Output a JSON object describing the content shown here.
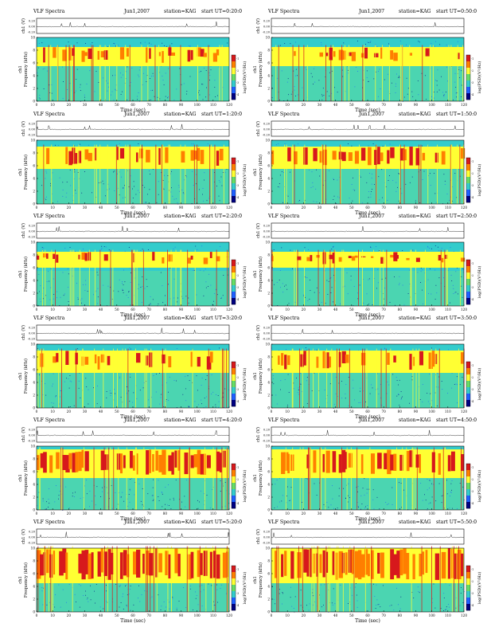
{
  "figure": {
    "header_prefix": "VLF Spectra",
    "date": "Jun1,2007",
    "station": "station=KAG",
    "start_prefix": "start  UT",
    "time_label": "Time (sec)",
    "freq_label": "Frequency (kHz)",
    "ch_label": "ch1",
    "ch_amp_label": "ch1 (V)",
    "colorbar_label": "log(PSD)(V²/Hz)",
    "colorbar_ticks": [
      "-1",
      "-2",
      "-3",
      "-4"
    ],
    "colorbar_colors": [
      "#d7191c",
      "#ff7f00",
      "#ffff33",
      "#66dd66",
      "#33cccc",
      "#1f5fff",
      "#000080"
    ],
    "amp_ticks": [
      "0.20",
      "0.00",
      "-0.20"
    ]
  },
  "chart_data": [
    {
      "type": "heatmap",
      "panel": "0:20:0",
      "start_ut": "=0:20:0",
      "xlim": [
        0,
        120
      ],
      "ylim": [
        0,
        10
      ],
      "x_ticks": [
        0,
        10,
        20,
        30,
        40,
        50,
        60,
        70,
        80,
        90,
        100,
        110,
        120
      ],
      "y_ticks": [
        0,
        2,
        4,
        6,
        8,
        10
      ],
      "xlabel": "Time (sec)",
      "ylabel": "Frequency (kHz)",
      "colorbar_label": "log(PSD)(V²/Hz)",
      "band_kHz": [
        5.5,
        8.5
      ],
      "intensity": "moderate"
    },
    {
      "type": "heatmap",
      "panel": "0:50:0",
      "start_ut": "=0:50:0",
      "xlim": [
        0,
        120
      ],
      "ylim": [
        0,
        10
      ],
      "x_ticks": [
        0,
        10,
        20,
        30,
        40,
        50,
        60,
        70,
        80,
        90,
        100,
        110,
        120
      ],
      "y_ticks": [
        0,
        2,
        4,
        6,
        8,
        10
      ],
      "xlabel": "Time (sec)",
      "ylabel": "Frequency (kHz)",
      "colorbar_label": "log(PSD)(V²/Hz)",
      "band_kHz": [
        5.5,
        8.5
      ],
      "intensity": "moderate"
    },
    {
      "type": "heatmap",
      "panel": "1:20:0",
      "start_ut": "=1:20:0",
      "xlim": [
        0,
        120
      ],
      "ylim": [
        0,
        10
      ],
      "x_ticks": [
        0,
        10,
        20,
        30,
        40,
        50,
        60,
        70,
        80,
        90,
        100,
        110,
        120
      ],
      "y_ticks": [
        0,
        2,
        4,
        6,
        8,
        10
      ],
      "xlabel": "Time (sec)",
      "ylabel": "Frequency (kHz)",
      "colorbar_label": "log(PSD)(V²/Hz)",
      "band_kHz": [
        5.5,
        9
      ],
      "intensity": "moderate"
    },
    {
      "type": "heatmap",
      "panel": "1:50:0",
      "start_ut": "=1:50:0",
      "xlim": [
        0,
        120
      ],
      "ylim": [
        0,
        10
      ],
      "x_ticks": [
        0,
        10,
        20,
        30,
        40,
        50,
        60,
        70,
        80,
        90,
        100,
        110,
        120
      ],
      "y_ticks": [
        0,
        2,
        4,
        6,
        8,
        10
      ],
      "xlabel": "Time (sec)",
      "ylabel": "Frequency (kHz)",
      "colorbar_label": "log(PSD)(V²/Hz)",
      "band_kHz": [
        5.5,
        9
      ],
      "intensity": "moderate"
    },
    {
      "type": "heatmap",
      "panel": "2:20:0",
      "start_ut": "=2:20:0",
      "xlim": [
        0,
        120
      ],
      "ylim": [
        0,
        10
      ],
      "x_ticks": [
        0,
        10,
        20,
        30,
        40,
        50,
        60,
        70,
        80,
        90,
        100,
        110,
        120
      ],
      "y_ticks": [
        0,
        2,
        4,
        6,
        8,
        10
      ],
      "xlabel": "Time (sec)",
      "ylabel": "Frequency (kHz)",
      "colorbar_label": "log(PSD)(V²/Hz)",
      "band_kHz": [
        6,
        8.5
      ],
      "intensity": "moderate"
    },
    {
      "type": "heatmap",
      "panel": "2:50:0",
      "start_ut": "=2:50:0",
      "xlim": [
        0,
        120
      ],
      "ylim": [
        0,
        10
      ],
      "x_ticks": [
        0,
        10,
        20,
        30,
        40,
        50,
        60,
        70,
        80,
        90,
        100,
        110,
        120
      ],
      "y_ticks": [
        0,
        2,
        4,
        6,
        8,
        10
      ],
      "xlabel": "Time (sec)",
      "ylabel": "Frequency (kHz)",
      "colorbar_label": "log(PSD)(V²/Hz)",
      "band_kHz": [
        6,
        8.5
      ],
      "intensity": "moderate"
    },
    {
      "type": "heatmap",
      "panel": "3:20:0",
      "start_ut": "=3:20:0",
      "xlim": [
        0,
        120
      ],
      "ylim": [
        0,
        10
      ],
      "x_ticks": [
        0,
        10,
        20,
        30,
        40,
        50,
        60,
        70,
        80,
        90,
        100,
        110,
        120
      ],
      "y_ticks": [
        0,
        2,
        4,
        6,
        8,
        10
      ],
      "xlabel": "Time (sec)",
      "ylabel": "Frequency (kHz)",
      "colorbar_label": "log(PSD)(V²/Hz)",
      "band_kHz": [
        5.5,
        9
      ],
      "intensity": "moderate"
    },
    {
      "type": "heatmap",
      "panel": "3:50:0",
      "start_ut": "=3:50:0",
      "xlim": [
        0,
        120
      ],
      "ylim": [
        0,
        10
      ],
      "x_ticks": [
        0,
        10,
        20,
        30,
        40,
        50,
        60,
        70,
        80,
        90,
        100,
        110,
        120
      ],
      "y_ticks": [
        0,
        2,
        4,
        6,
        8,
        10
      ],
      "xlabel": "Time (sec)",
      "ylabel": "Frequency (kHz)",
      "colorbar_label": "log(PSD)(V²/Hz)",
      "band_kHz": [
        5.5,
        9
      ],
      "intensity": "moderate"
    },
    {
      "type": "heatmap",
      "panel": "4:20:0",
      "start_ut": "=4:20:0",
      "xlim": [
        0,
        120
      ],
      "ylim": [
        0,
        10
      ],
      "x_ticks": [
        0,
        10,
        20,
        30,
        40,
        50,
        60,
        70,
        80,
        90,
        100,
        110,
        120
      ],
      "y_ticks": [
        0,
        2,
        4,
        6,
        8,
        10
      ],
      "xlabel": "Time (sec)",
      "ylabel": "Frequency (kHz)",
      "colorbar_label": "log(PSD)(V²/Hz)",
      "band_kHz": [
        5,
        9.5
      ],
      "intensity": "strong"
    },
    {
      "type": "heatmap",
      "panel": "4:50:0",
      "start_ut": "=4:50:0",
      "xlim": [
        0,
        120
      ],
      "ylim": [
        0,
        10
      ],
      "x_ticks": [
        0,
        10,
        20,
        30,
        40,
        50,
        60,
        70,
        80,
        90,
        100,
        110,
        120
      ],
      "y_ticks": [
        0,
        2,
        4,
        6,
        8,
        10
      ],
      "xlabel": "Time (sec)",
      "ylabel": "Frequency (kHz)",
      "colorbar_label": "log(PSD)(V²/Hz)",
      "band_kHz": [
        5,
        9.5
      ],
      "intensity": "strong"
    },
    {
      "type": "heatmap",
      "panel": "5:20:0",
      "start_ut": "=5:20:0",
      "xlim": [
        0,
        120
      ],
      "ylim": [
        0,
        10
      ],
      "x_ticks": [
        0,
        10,
        20,
        30,
        40,
        50,
        60,
        70,
        80,
        90,
        100,
        110,
        120
      ],
      "y_ticks": [
        0,
        2,
        4,
        6,
        8,
        10
      ],
      "xlabel": "Time (sec)",
      "ylabel": "Frequency (kHz)",
      "colorbar_label": "log(PSD)(V²/Hz)",
      "band_kHz": [
        4.5,
        10
      ],
      "intensity": "very-strong"
    },
    {
      "type": "heatmap",
      "panel": "5:50:0",
      "start_ut": "=5:50:0",
      "xlim": [
        0,
        120
      ],
      "ylim": [
        0,
        10
      ],
      "x_ticks": [
        0,
        10,
        20,
        30,
        40,
        50,
        60,
        70,
        80,
        90,
        100,
        110,
        120
      ],
      "y_ticks": [
        0,
        2,
        4,
        6,
        8,
        10
      ],
      "xlabel": "Time (sec)",
      "ylabel": "Frequency (kHz)",
      "colorbar_label": "log(PSD)(V²/Hz)",
      "band_kHz": [
        4.5,
        10
      ],
      "intensity": "very-strong"
    }
  ]
}
